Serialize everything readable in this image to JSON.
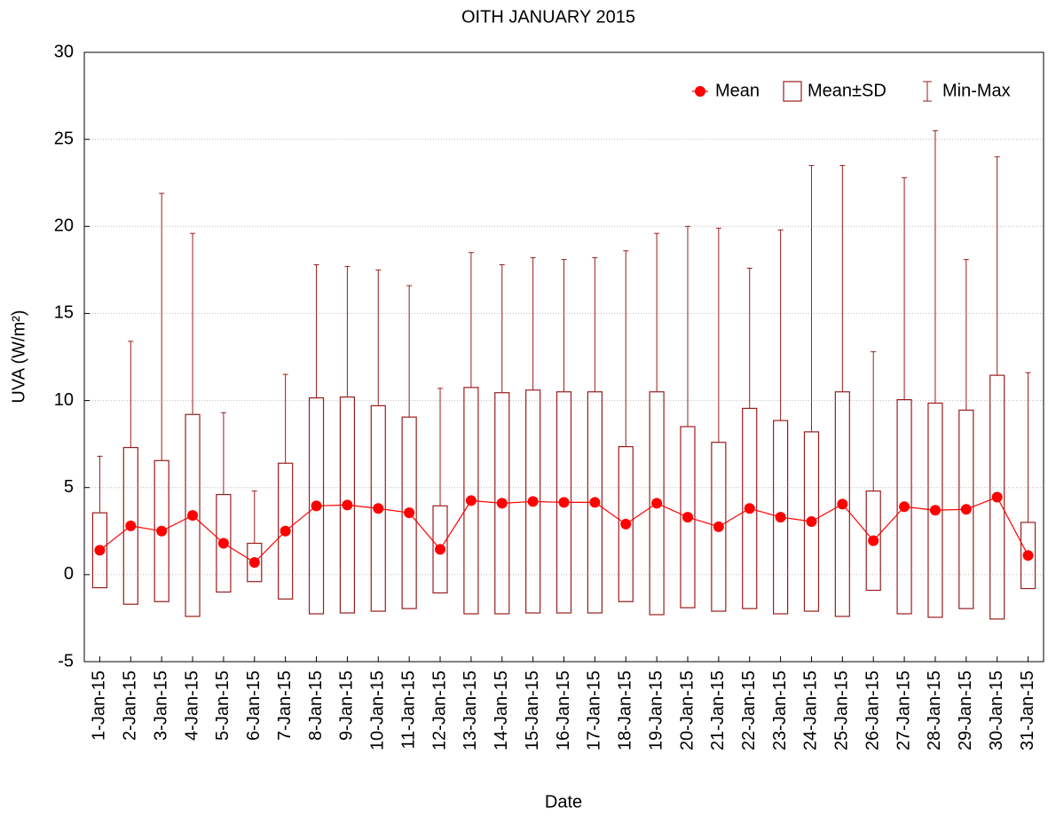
{
  "chart_data": {
    "type": "box",
    "title": "OITH JANUARY 2015",
    "x_label": "Date",
    "y_label": "UVA (W/m²)",
    "categories": [
      "1-Jan-15",
      "2-Jan-15",
      "3-Jan-15",
      "4-Jan-15",
      "5-Jan-15",
      "6-Jan-15",
      "7-Jan-15",
      "8-Jan-15",
      "9-Jan-15",
      "10-Jan-15",
      "11-Jan-15",
      "12-Jan-15",
      "13-Jan-15",
      "14-Jan-15",
      "15-Jan-15",
      "16-Jan-15",
      "17-Jan-15",
      "18-Jan-15",
      "19-Jan-15",
      "20-Jan-15",
      "21-Jan-15",
      "22-Jan-15",
      "23-Jan-15",
      "24-Jan-15",
      "25-Jan-15",
      "26-Jan-15",
      "27-Jan-15",
      "28-Jan-15",
      "29-Jan-15",
      "30-Jan-15",
      "31-Jan-15"
    ],
    "series": [
      {
        "name": "Mean",
        "color": "#ff0000",
        "values": [
          1.4,
          2.8,
          2.5,
          3.4,
          1.8,
          0.7,
          2.5,
          3.95,
          4.0,
          3.8,
          3.55,
          1.45,
          4.25,
          4.1,
          4.2,
          4.15,
          4.15,
          2.9,
          4.1,
          3.3,
          2.75,
          3.8,
          3.3,
          3.05,
          4.05,
          1.95,
          3.9,
          3.7,
          3.75,
          4.45,
          1.1
        ]
      },
      {
        "name": "Mean±SD",
        "color": "#9b1c1c",
        "values": [
          2.15,
          4.5,
          4.05,
          5.8,
          2.8,
          1.1,
          3.9,
          6.2,
          6.2,
          5.9,
          5.5,
          2.5,
          6.5,
          6.35,
          6.4,
          6.35,
          6.35,
          4.45,
          6.4,
          5.2,
          4.85,
          5.75,
          5.55,
          5.15,
          6.45,
          2.85,
          6.15,
          6.15,
          5.7,
          7.0,
          1.9
        ]
      },
      {
        "name": "Min-Max",
        "color": "#9b1c1c",
        "min": [
          0,
          0,
          0,
          0,
          0,
          0,
          0,
          0,
          0,
          0,
          0,
          0,
          0,
          0,
          0,
          0,
          0,
          0,
          0,
          0,
          0,
          0,
          0,
          0,
          0,
          0,
          0,
          0,
          0,
          0,
          0
        ],
        "max": [
          6.8,
          13.4,
          21.9,
          19.6,
          9.3,
          4.8,
          11.5,
          17.8,
          17.7,
          17.5,
          16.6,
          10.7,
          18.5,
          17.8,
          18.2,
          18.1,
          18.2,
          18.6,
          19.6,
          20.0,
          19.9,
          17.6,
          19.8,
          23.5,
          23.5,
          12.8,
          22.8,
          25.5,
          18.1,
          24.0,
          11.6
        ]
      }
    ],
    "ylim": [
      -5,
      30
    ],
    "yticks": [
      -5,
      0,
      5,
      10,
      15,
      20,
      25,
      30
    ],
    "grid": true,
    "legend": "top-right"
  }
}
